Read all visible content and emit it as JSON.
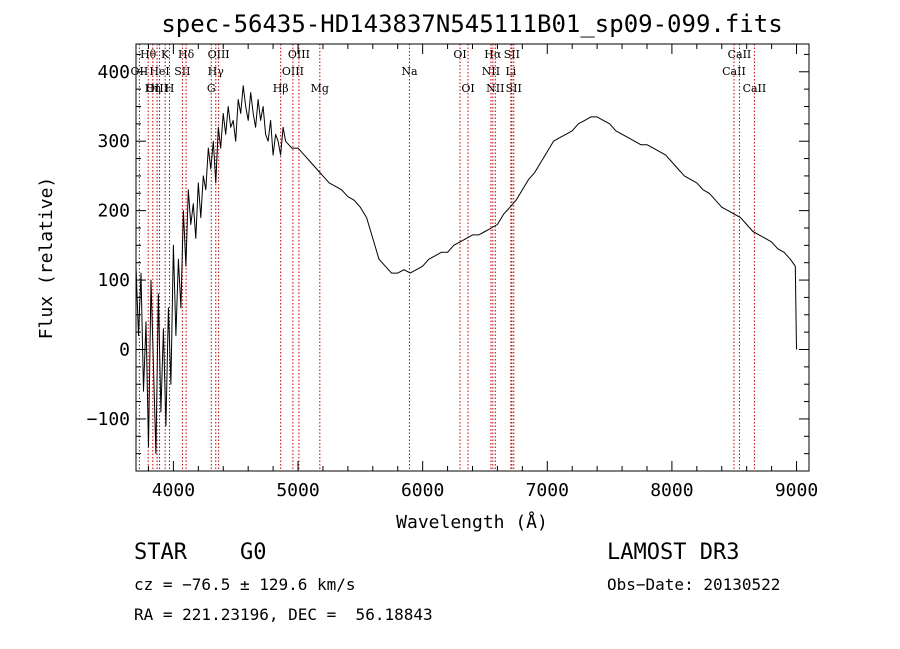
{
  "chart_data": {
    "type": "line",
    "title": "spec-56435-HD143837N545111B01_sp09-099.fits",
    "xlabel": "Wavelength (Å)",
    "ylabel": "Flux (relative)",
    "xlim": [
      3700,
      9100
    ],
    "ylim": [
      -175,
      440
    ],
    "xticks": [
      4000,
      5000,
      6000,
      7000,
      8000,
      9000
    ],
    "yticks": [
      -100,
      0,
      100,
      200,
      300,
      400
    ],
    "grid": false,
    "line_color": "#000000",
    "marker_color": "#c00000",
    "series": [
      {
        "x": [
          3700,
          3720,
          3740,
          3760,
          3780,
          3800,
          3820,
          3840,
          3860,
          3880,
          3900,
          3920,
          3940,
          3960,
          3980,
          4000,
          4020,
          4040,
          4060,
          4080,
          4100,
          4120,
          4140,
          4160,
          4180,
          4200,
          4220,
          4240,
          4260,
          4280,
          4300,
          4320,
          4340,
          4360,
          4380,
          4400,
          4420,
          4440,
          4460,
          4480,
          4500,
          4520,
          4540,
          4560,
          4580,
          4600,
          4620,
          4640,
          4660,
          4680,
          4700,
          4720,
          4740,
          4760,
          4780,
          4800,
          4820,
          4840,
          4860,
          4880,
          4900,
          4950,
          5000,
          5050,
          5100,
          5150,
          5200,
          5250,
          5300,
          5350,
          5400,
          5450,
          5500,
          5550,
          5600,
          5650,
          5700,
          5750,
          5800,
          5850,
          5900,
          5950,
          6000,
          6050,
          6100,
          6150,
          6200,
          6250,
          6300,
          6350,
          6400,
          6450,
          6500,
          6550,
          6600,
          6650,
          6700,
          6750,
          6800,
          6850,
          6900,
          6950,
          7000,
          7050,
          7100,
          7150,
          7200,
          7250,
          7300,
          7350,
          7400,
          7450,
          7500,
          7550,
          7600,
          7650,
          7700,
          7750,
          7800,
          7850,
          7900,
          7950,
          8000,
          8050,
          8100,
          8150,
          8200,
          8250,
          8300,
          8350,
          8400,
          8450,
          8500,
          8550,
          8600,
          8650,
          8700,
          8750,
          8800,
          8850,
          8900,
          8950,
          8990,
          9000
        ],
        "y": [
          120,
          20,
          110,
          -60,
          40,
          -140,
          100,
          -20,
          -150,
          80,
          -90,
          30,
          -110,
          60,
          -50,
          150,
          20,
          130,
          60,
          200,
          120,
          230,
          180,
          210,
          160,
          240,
          190,
          250,
          230,
          290,
          260,
          300,
          240,
          320,
          290,
          340,
          310,
          350,
          320,
          330,
          300,
          360,
          340,
          380,
          350,
          330,
          370,
          340,
          320,
          360,
          330,
          350,
          310,
          300,
          330,
          280,
          310,
          300,
          280,
          320,
          300,
          290,
          290,
          280,
          270,
          260,
          250,
          240,
          235,
          230,
          220,
          215,
          205,
          190,
          160,
          130,
          120,
          110,
          110,
          115,
          110,
          115,
          120,
          130,
          135,
          140,
          140,
          150,
          155,
          160,
          165,
          165,
          170,
          175,
          180,
          195,
          205,
          215,
          230,
          245,
          255,
          270,
          285,
          300,
          305,
          310,
          315,
          325,
          330,
          335,
          335,
          330,
          325,
          315,
          310,
          305,
          300,
          295,
          295,
          290,
          285,
          280,
          270,
          260,
          250,
          245,
          240,
          230,
          225,
          215,
          205,
          200,
          195,
          190,
          180,
          170,
          165,
          160,
          155,
          145,
          140,
          130,
          120,
          0
        ]
      }
    ],
    "line_markers": [
      {
        "label": "OII",
        "wl": 3727,
        "row": 1
      },
      {
        "label": "Hθ",
        "wl": 3798,
        "row": 0
      },
      {
        "label": "OIII",
        "wl": 3869,
        "row": 2
      },
      {
        "label": "HeI",
        "wl": 3889,
        "row": 1
      },
      {
        "label": "Hη",
        "wl": 3835,
        "row": 2
      },
      {
        "label": "K",
        "wl": 3934,
        "row": 0
      },
      {
        "label": "H",
        "wl": 3969,
        "row": 2
      },
      {
        "label": "SII",
        "wl": 4072,
        "row": 1
      },
      {
        "label": "Hδ",
        "wl": 4102,
        "row": 0
      },
      {
        "label": "G",
        "wl": 4304,
        "row": 2
      },
      {
        "label": "Hγ",
        "wl": 4340,
        "row": 1
      },
      {
        "label": "OIII",
        "wl": 4363,
        "row": 0
      },
      {
        "label": "Hβ",
        "wl": 4861,
        "row": 2
      },
      {
        "label": "OIII",
        "wl": 4959,
        "row": 1
      },
      {
        "label": "OIII",
        "wl": 5007,
        "row": 0
      },
      {
        "label": "Mg",
        "wl": 5175,
        "row": 2
      },
      {
        "label": "Na",
        "wl": 5894,
        "row": 1
      },
      {
        "label": "OI",
        "wl": 6300,
        "row": 0
      },
      {
        "label": "OI",
        "wl": 6364,
        "row": 2
      },
      {
        "label": "NII",
        "wl": 6548,
        "row": 1
      },
      {
        "label": "Hα",
        "wl": 6563,
        "row": 0
      },
      {
        "label": "NII",
        "wl": 6583,
        "row": 2
      },
      {
        "label": "Li",
        "wl": 6708,
        "row": 1
      },
      {
        "label": "SII",
        "wl": 6716,
        "row": 0
      },
      {
        "label": "SII",
        "wl": 6731,
        "row": 2
      },
      {
        "label": "CaII",
        "wl": 8498,
        "row": 1
      },
      {
        "label": "CaII",
        "wl": 8542,
        "row": 0
      },
      {
        "label": "CaII",
        "wl": 8662,
        "row": 2
      }
    ]
  },
  "info": {
    "class": "STAR",
    "subclass": "G0",
    "survey": "LAMOST DR3",
    "cz": "cz = −76.5 ± 129.6 km/s",
    "obsdate": "Obs−Date: 20130522",
    "radec": "RA = 221.23196, DEC =  56.18843"
  }
}
